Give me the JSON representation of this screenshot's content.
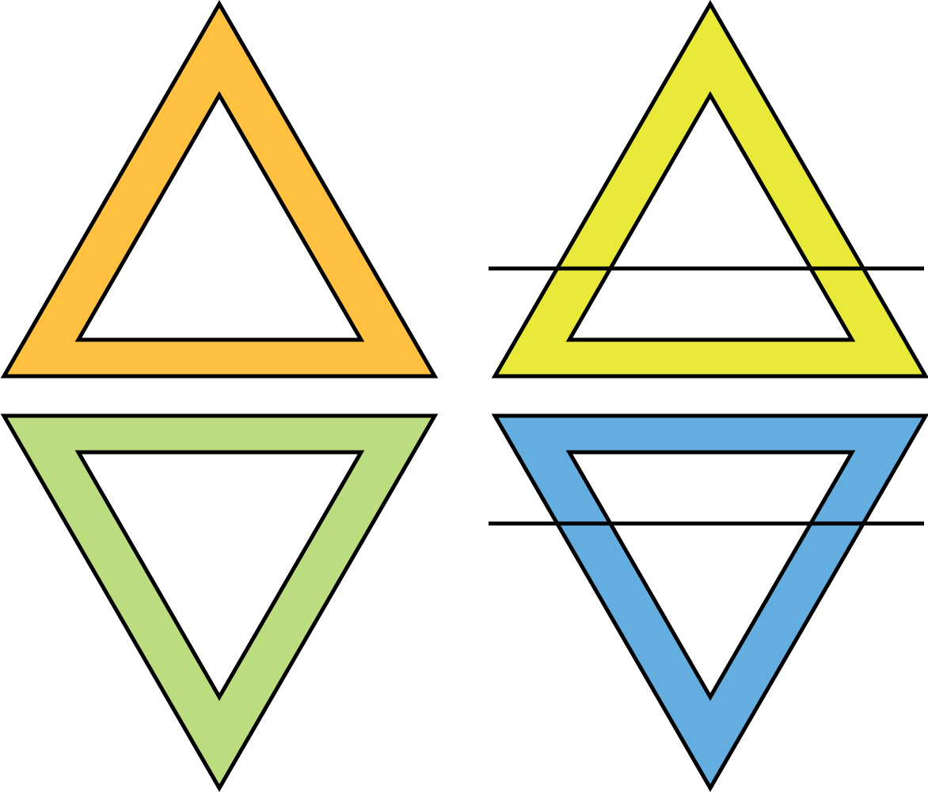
{
  "symbols": [
    {
      "id": "fire",
      "orientation": "up",
      "crossbar": false,
      "color": "#FFC13F"
    },
    {
      "id": "air",
      "orientation": "up",
      "crossbar": true,
      "color": "#E9E93A"
    },
    {
      "id": "water",
      "orientation": "down",
      "crossbar": false,
      "color": "#BCDC80"
    },
    {
      "id": "earth",
      "orientation": "down",
      "crossbar": true,
      "color": "#64ADE0"
    }
  ],
  "colors": {
    "outline": "#000000",
    "background": "#FFFFFF"
  }
}
